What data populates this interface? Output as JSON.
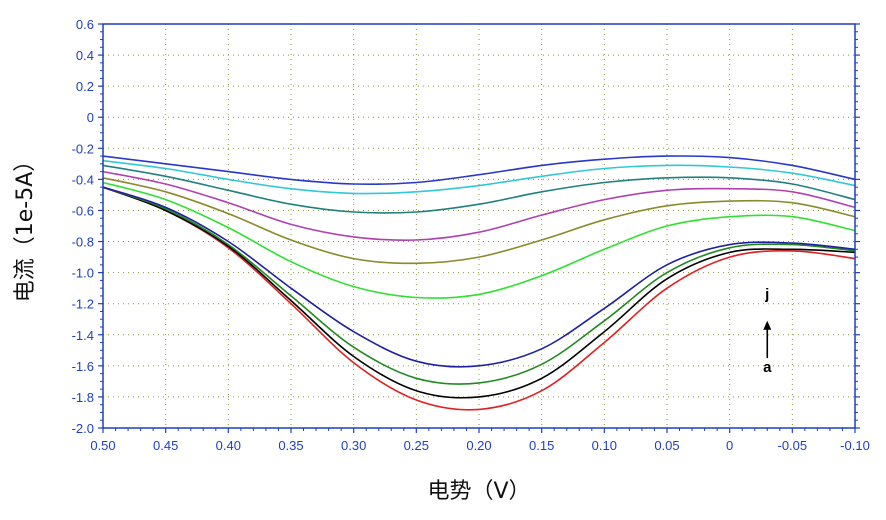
{
  "chart_data": {
    "type": "line",
    "title": "",
    "xlabel": "电势（V）",
    "ylabel": "电流（1e-5A）",
    "xlim": [
      0.5,
      -0.1
    ],
    "ylim": [
      -2.0,
      0.6
    ],
    "x_reversed": true,
    "grid": true,
    "grid_style": "dotted",
    "x_ticks": [
      0.5,
      0.45,
      0.4,
      0.35,
      0.3,
      0.25,
      0.2,
      0.15,
      0.1,
      0.05,
      0,
      -0.05,
      -0.1
    ],
    "x_tick_labels": [
      "0.50",
      "0.45",
      "0.40",
      "0.35",
      "0.30",
      "0.25",
      "0.20",
      "0.15",
      "0.10",
      "0.05",
      "0",
      "-0.05",
      "-0.10"
    ],
    "y_ticks": [
      0.6,
      0.4,
      0.2,
      0,
      -0.2,
      -0.4,
      -0.6,
      -0.8,
      -1.0,
      -1.2,
      -1.4,
      -1.6,
      -1.8,
      -2.0
    ],
    "y_tick_labels": [
      "0.6",
      "0.4",
      "0.2",
      "0",
      "-0.2",
      "-0.4",
      "-0.6",
      "-0.8",
      "-1.0",
      "-1.2",
      "-1.4",
      "-1.6",
      "-1.8",
      "-2.0"
    ],
    "annotations": [
      {
        "text": "j",
        "x": -0.03,
        "y": -1.17
      },
      {
        "text": "a",
        "x": -0.03,
        "y": -1.64
      }
    ],
    "arrow": {
      "x": -0.03,
      "y_from": -1.55,
      "y_to": -1.31
    },
    "series": [
      {
        "color": "#e02020",
        "x": [
          0.5,
          0.45,
          0.4,
          0.35,
          0.3,
          0.25,
          0.2,
          0.15,
          0.1,
          0.05,
          0.0,
          -0.05,
          -0.1
        ],
        "y": [
          -0.45,
          -0.6,
          -0.84,
          -1.2,
          -1.58,
          -1.82,
          -1.88,
          -1.76,
          -1.45,
          -1.1,
          -0.9,
          -0.86,
          -0.91
        ]
      },
      {
        "color": "#000000",
        "x": [
          0.5,
          0.45,
          0.4,
          0.35,
          0.3,
          0.25,
          0.2,
          0.15,
          0.1,
          0.05,
          0.0,
          -0.05,
          -0.1
        ],
        "y": [
          -0.45,
          -0.6,
          -0.83,
          -1.18,
          -1.54,
          -1.76,
          -1.8,
          -1.68,
          -1.38,
          -1.04,
          -0.87,
          -0.85,
          -0.87
        ]
      },
      {
        "color": "#208a20",
        "x": [
          0.5,
          0.45,
          0.4,
          0.35,
          0.3,
          0.25,
          0.2,
          0.15,
          0.1,
          0.05,
          0.0,
          -0.05,
          -0.1
        ],
        "y": [
          -0.45,
          -0.59,
          -0.82,
          -1.15,
          -1.48,
          -1.68,
          -1.71,
          -1.59,
          -1.31,
          -1.0,
          -0.84,
          -0.82,
          -0.86
        ]
      },
      {
        "color": "#2020a0",
        "x": [
          0.5,
          0.45,
          0.4,
          0.35,
          0.3,
          0.25,
          0.2,
          0.15,
          0.1,
          0.05,
          0.0,
          -0.05,
          -0.1
        ],
        "y": [
          -0.45,
          -0.58,
          -0.8,
          -1.1,
          -1.38,
          -1.57,
          -1.6,
          -1.49,
          -1.23,
          -0.95,
          -0.82,
          -0.81,
          -0.85
        ]
      },
      {
        "color": "#30e030",
        "x": [
          0.5,
          0.45,
          0.4,
          0.35,
          0.3,
          0.25,
          0.2,
          0.15,
          0.1,
          0.05,
          0.0,
          -0.05,
          -0.1
        ],
        "y": [
          -0.42,
          -0.53,
          -0.71,
          -0.93,
          -1.09,
          -1.16,
          -1.14,
          -1.02,
          -0.85,
          -0.7,
          -0.64,
          -0.64,
          -0.73
        ]
      },
      {
        "color": "#8a8a2a",
        "x": [
          0.5,
          0.45,
          0.4,
          0.35,
          0.3,
          0.25,
          0.2,
          0.15,
          0.1,
          0.05,
          0.0,
          -0.05,
          -0.1
        ],
        "y": [
          -0.39,
          -0.48,
          -0.62,
          -0.79,
          -0.91,
          -0.94,
          -0.9,
          -0.79,
          -0.66,
          -0.57,
          -0.54,
          -0.55,
          -0.64
        ]
      },
      {
        "color": "#b040b0",
        "x": [
          0.5,
          0.45,
          0.4,
          0.35,
          0.3,
          0.25,
          0.2,
          0.15,
          0.1,
          0.05,
          0.0,
          -0.05,
          -0.1
        ],
        "y": [
          -0.35,
          -0.43,
          -0.55,
          -0.69,
          -0.77,
          -0.79,
          -0.74,
          -0.63,
          -0.53,
          -0.47,
          -0.46,
          -0.48,
          -0.58
        ]
      },
      {
        "color": "#208080",
        "x": [
          0.5,
          0.45,
          0.4,
          0.35,
          0.3,
          0.25,
          0.2,
          0.15,
          0.1,
          0.05,
          0.0,
          -0.05,
          -0.1
        ],
        "y": [
          -0.31,
          -0.38,
          -0.47,
          -0.56,
          -0.61,
          -0.61,
          -0.56,
          -0.48,
          -0.42,
          -0.39,
          -0.39,
          -0.43,
          -0.53
        ]
      },
      {
        "color": "#30c8d8",
        "x": [
          0.5,
          0.45,
          0.4,
          0.35,
          0.3,
          0.25,
          0.2,
          0.15,
          0.1,
          0.05,
          0.0,
          -0.05,
          -0.1
        ],
        "y": [
          -0.28,
          -0.33,
          -0.4,
          -0.46,
          -0.49,
          -0.48,
          -0.44,
          -0.38,
          -0.33,
          -0.31,
          -0.32,
          -0.36,
          -0.44
        ]
      },
      {
        "color": "#2838c8",
        "x": [
          0.5,
          0.45,
          0.4,
          0.35,
          0.3,
          0.25,
          0.2,
          0.15,
          0.1,
          0.05,
          0.0,
          -0.05,
          -0.1
        ],
        "y": [
          -0.25,
          -0.3,
          -0.35,
          -0.4,
          -0.43,
          -0.42,
          -0.37,
          -0.31,
          -0.27,
          -0.25,
          -0.26,
          -0.31,
          -0.4
        ]
      }
    ]
  }
}
